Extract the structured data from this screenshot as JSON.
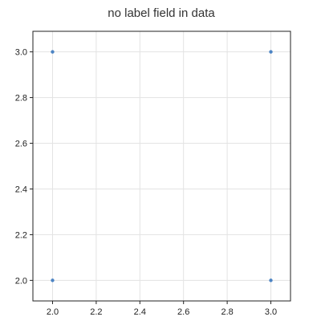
{
  "chart_data": {
    "type": "scatter",
    "title": "no label field in data",
    "xlabel": "",
    "ylabel": "",
    "xlim": [
      1.91,
      3.09
    ],
    "ylim": [
      1.91,
      3.09
    ],
    "xticks": [
      2.0,
      2.2,
      2.4,
      2.6,
      2.8,
      3.0
    ],
    "yticks": [
      2.0,
      2.2,
      2.4,
      2.6,
      2.8,
      3.0
    ],
    "xtick_labels": [
      "2.0",
      "2.2",
      "2.4",
      "2.6",
      "2.8",
      "3.0"
    ],
    "ytick_labels": [
      "2.0",
      "2.2",
      "2.4",
      "2.6",
      "2.8",
      "3.0"
    ],
    "grid": true,
    "legend": "none",
    "point_color": "#4c84c4",
    "series": [
      {
        "points": [
          {
            "x": 2.0,
            "y": 3.0
          },
          {
            "x": 3.0,
            "y": 3.0
          },
          {
            "x": 2.0,
            "y": 2.0
          },
          {
            "x": 3.0,
            "y": 2.0
          }
        ]
      }
    ]
  }
}
